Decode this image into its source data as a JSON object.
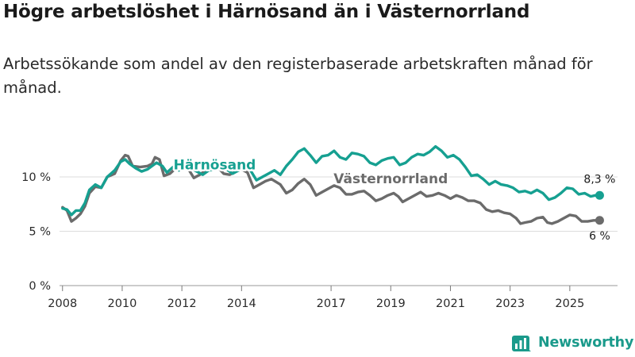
{
  "header": {
    "title": "Högre arbetslöshet i Härnösand än i Västernorrland",
    "subtitle": "Arbetssökande som andel av den registerbaserade arbetskraften månad för månad."
  },
  "brand": {
    "name": "Newsworthy",
    "icon": "newsworthy-chart-icon",
    "color": "#1a9a8b"
  },
  "chart_data": {
    "type": "line",
    "title": "Högre arbetslöshet i Härnösand än i Västernorrland",
    "xlabel": "",
    "ylabel": "",
    "xlim": [
      2007.9,
      2026.6
    ],
    "ylim": [
      0,
      13.5
    ],
    "grid": true,
    "y_ticks": [
      0,
      5,
      10
    ],
    "y_tick_labels": [
      "0 %",
      "5 %",
      "10 %"
    ],
    "x_ticks": [
      2008,
      2010,
      2012,
      2014,
      2017,
      2019,
      2021,
      2023,
      2025
    ],
    "x_tick_labels": [
      "2008",
      "2010",
      "2012",
      "2014",
      "2017",
      "2019",
      "2021",
      "2023",
      "2025"
    ],
    "series": [
      {
        "name": "Västernorrland",
        "label": "Västernorrland",
        "color": "#6b6b6b",
        "end_label": "6 %",
        "points": [
          [
            2008.0,
            7.2
          ],
          [
            2008.15,
            6.9
          ],
          [
            2008.3,
            5.9
          ],
          [
            2008.45,
            6.2
          ],
          [
            2008.6,
            6.6
          ],
          [
            2008.75,
            7.3
          ],
          [
            2008.9,
            8.5
          ],
          [
            2009.1,
            9.1
          ],
          [
            2009.3,
            9.0
          ],
          [
            2009.5,
            10.0
          ],
          [
            2009.75,
            10.3
          ],
          [
            2009.95,
            11.5
          ],
          [
            2010.1,
            12.0
          ],
          [
            2010.2,
            11.9
          ],
          [
            2010.35,
            11.0
          ],
          [
            2010.6,
            10.9
          ],
          [
            2010.85,
            11.0
          ],
          [
            2011.0,
            11.2
          ],
          [
            2011.1,
            11.8
          ],
          [
            2011.25,
            11.6
          ],
          [
            2011.4,
            10.1
          ],
          [
            2011.6,
            10.3
          ],
          [
            2011.8,
            10.8
          ],
          [
            2012.0,
            11.2
          ],
          [
            2012.2,
            10.8
          ],
          [
            2012.4,
            9.9
          ],
          [
            2012.6,
            10.2
          ],
          [
            2012.8,
            10.6
          ],
          [
            2013.0,
            10.9
          ],
          [
            2013.2,
            10.9
          ],
          [
            2013.4,
            10.3
          ],
          [
            2013.6,
            10.2
          ],
          [
            2013.8,
            10.5
          ],
          [
            2014.0,
            10.7
          ],
          [
            2014.2,
            10.4
          ],
          [
            2014.4,
            9.0
          ],
          [
            2014.6,
            9.3
          ],
          [
            2014.8,
            9.6
          ],
          [
            2015.0,
            9.8
          ],
          [
            2015.3,
            9.3
          ],
          [
            2015.5,
            8.5
          ],
          [
            2015.7,
            8.8
          ],
          [
            2015.9,
            9.4
          ],
          [
            2016.1,
            9.8
          ],
          [
            2016.3,
            9.3
          ],
          [
            2016.5,
            8.3
          ],
          [
            2016.7,
            8.6
          ],
          [
            2016.9,
            8.9
          ],
          [
            2017.1,
            9.2
          ],
          [
            2017.3,
            9.0
          ],
          [
            2017.5,
            8.4
          ],
          [
            2017.7,
            8.4
          ],
          [
            2017.9,
            8.6
          ],
          [
            2018.1,
            8.7
          ],
          [
            2018.3,
            8.3
          ],
          [
            2018.5,
            7.8
          ],
          [
            2018.7,
            8.0
          ],
          [
            2018.9,
            8.3
          ],
          [
            2019.1,
            8.5
          ],
          [
            2019.25,
            8.2
          ],
          [
            2019.4,
            7.7
          ],
          [
            2019.6,
            8.0
          ],
          [
            2019.8,
            8.3
          ],
          [
            2020.0,
            8.6
          ],
          [
            2020.2,
            8.2
          ],
          [
            2020.4,
            8.3
          ],
          [
            2020.6,
            8.5
          ],
          [
            2020.8,
            8.3
          ],
          [
            2021.0,
            8.0
          ],
          [
            2021.2,
            8.3
          ],
          [
            2021.4,
            8.1
          ],
          [
            2021.6,
            7.8
          ],
          [
            2021.8,
            7.8
          ],
          [
            2022.0,
            7.6
          ],
          [
            2022.2,
            7.0
          ],
          [
            2022.4,
            6.8
          ],
          [
            2022.6,
            6.9
          ],
          [
            2022.8,
            6.7
          ],
          [
            2023.0,
            6.6
          ],
          [
            2023.2,
            6.2
          ],
          [
            2023.35,
            5.7
          ],
          [
            2023.5,
            5.8
          ],
          [
            2023.7,
            5.9
          ],
          [
            2023.9,
            6.2
          ],
          [
            2024.1,
            6.3
          ],
          [
            2024.25,
            5.8
          ],
          [
            2024.4,
            5.7
          ],
          [
            2024.6,
            5.9
          ],
          [
            2024.8,
            6.2
          ],
          [
            2025.0,
            6.5
          ],
          [
            2025.2,
            6.4
          ],
          [
            2025.4,
            5.9
          ],
          [
            2025.6,
            5.9
          ],
          [
            2025.8,
            6.0
          ],
          [
            2026.0,
            6.0
          ]
        ]
      },
      {
        "name": "Härnösand",
        "label": "Härnösand",
        "color": "#16a091",
        "end_label": "8,3 %",
        "points": [
          [
            2008.0,
            7.1
          ],
          [
            2008.15,
            7.0
          ],
          [
            2008.3,
            6.5
          ],
          [
            2008.45,
            6.9
          ],
          [
            2008.6,
            6.9
          ],
          [
            2008.75,
            7.6
          ],
          [
            2008.9,
            8.8
          ],
          [
            2009.1,
            9.3
          ],
          [
            2009.3,
            9.0
          ],
          [
            2009.5,
            10.0
          ],
          [
            2009.75,
            10.6
          ],
          [
            2009.95,
            11.4
          ],
          [
            2010.1,
            11.6
          ],
          [
            2010.25,
            11.2
          ],
          [
            2010.45,
            10.8
          ],
          [
            2010.65,
            10.5
          ],
          [
            2010.85,
            10.7
          ],
          [
            2011.0,
            11.0
          ],
          [
            2011.15,
            11.3
          ],
          [
            2011.35,
            11.0
          ],
          [
            2011.5,
            10.4
          ],
          [
            2011.7,
            10.9
          ],
          [
            2011.9,
            10.6
          ],
          [
            2012.1,
            11.2
          ],
          [
            2012.3,
            10.8
          ],
          [
            2012.5,
            10.5
          ],
          [
            2012.7,
            10.2
          ],
          [
            2012.9,
            10.6
          ],
          [
            2013.1,
            10.7
          ],
          [
            2013.3,
            11.0
          ],
          [
            2013.5,
            10.7
          ],
          [
            2013.7,
            10.3
          ],
          [
            2013.9,
            10.6
          ],
          [
            2014.1,
            10.9
          ],
          [
            2014.3,
            10.6
          ],
          [
            2014.5,
            9.7
          ],
          [
            2014.7,
            10.0
          ],
          [
            2014.9,
            10.3
          ],
          [
            2015.1,
            10.6
          ],
          [
            2015.3,
            10.2
          ],
          [
            2015.5,
            11.0
          ],
          [
            2015.7,
            11.6
          ],
          [
            2015.9,
            12.3
          ],
          [
            2016.1,
            12.6
          ],
          [
            2016.3,
            12.0
          ],
          [
            2016.5,
            11.3
          ],
          [
            2016.7,
            11.9
          ],
          [
            2016.9,
            12.0
          ],
          [
            2017.1,
            12.4
          ],
          [
            2017.3,
            11.8
          ],
          [
            2017.5,
            11.6
          ],
          [
            2017.7,
            12.2
          ],
          [
            2017.9,
            12.1
          ],
          [
            2018.1,
            11.9
          ],
          [
            2018.3,
            11.3
          ],
          [
            2018.5,
            11.1
          ],
          [
            2018.7,
            11.5
          ],
          [
            2018.9,
            11.7
          ],
          [
            2019.1,
            11.8
          ],
          [
            2019.3,
            11.1
          ],
          [
            2019.5,
            11.3
          ],
          [
            2019.7,
            11.8
          ],
          [
            2019.9,
            12.1
          ],
          [
            2020.1,
            12.0
          ],
          [
            2020.3,
            12.3
          ],
          [
            2020.5,
            12.8
          ],
          [
            2020.7,
            12.4
          ],
          [
            2020.9,
            11.8
          ],
          [
            2021.1,
            12.0
          ],
          [
            2021.3,
            11.6
          ],
          [
            2021.5,
            10.9
          ],
          [
            2021.7,
            10.1
          ],
          [
            2021.9,
            10.2
          ],
          [
            2022.1,
            9.8
          ],
          [
            2022.3,
            9.3
          ],
          [
            2022.5,
            9.6
          ],
          [
            2022.7,
            9.3
          ],
          [
            2022.9,
            9.2
          ],
          [
            2023.1,
            9.0
          ],
          [
            2023.3,
            8.6
          ],
          [
            2023.5,
            8.7
          ],
          [
            2023.7,
            8.5
          ],
          [
            2023.9,
            8.8
          ],
          [
            2024.1,
            8.5
          ],
          [
            2024.3,
            7.9
          ],
          [
            2024.5,
            8.1
          ],
          [
            2024.7,
            8.5
          ],
          [
            2024.9,
            9.0
          ],
          [
            2025.1,
            8.9
          ],
          [
            2025.3,
            8.4
          ],
          [
            2025.5,
            8.5
          ],
          [
            2025.7,
            8.2
          ],
          [
            2025.85,
            8.3
          ],
          [
            2026.0,
            8.3
          ]
        ]
      }
    ]
  }
}
